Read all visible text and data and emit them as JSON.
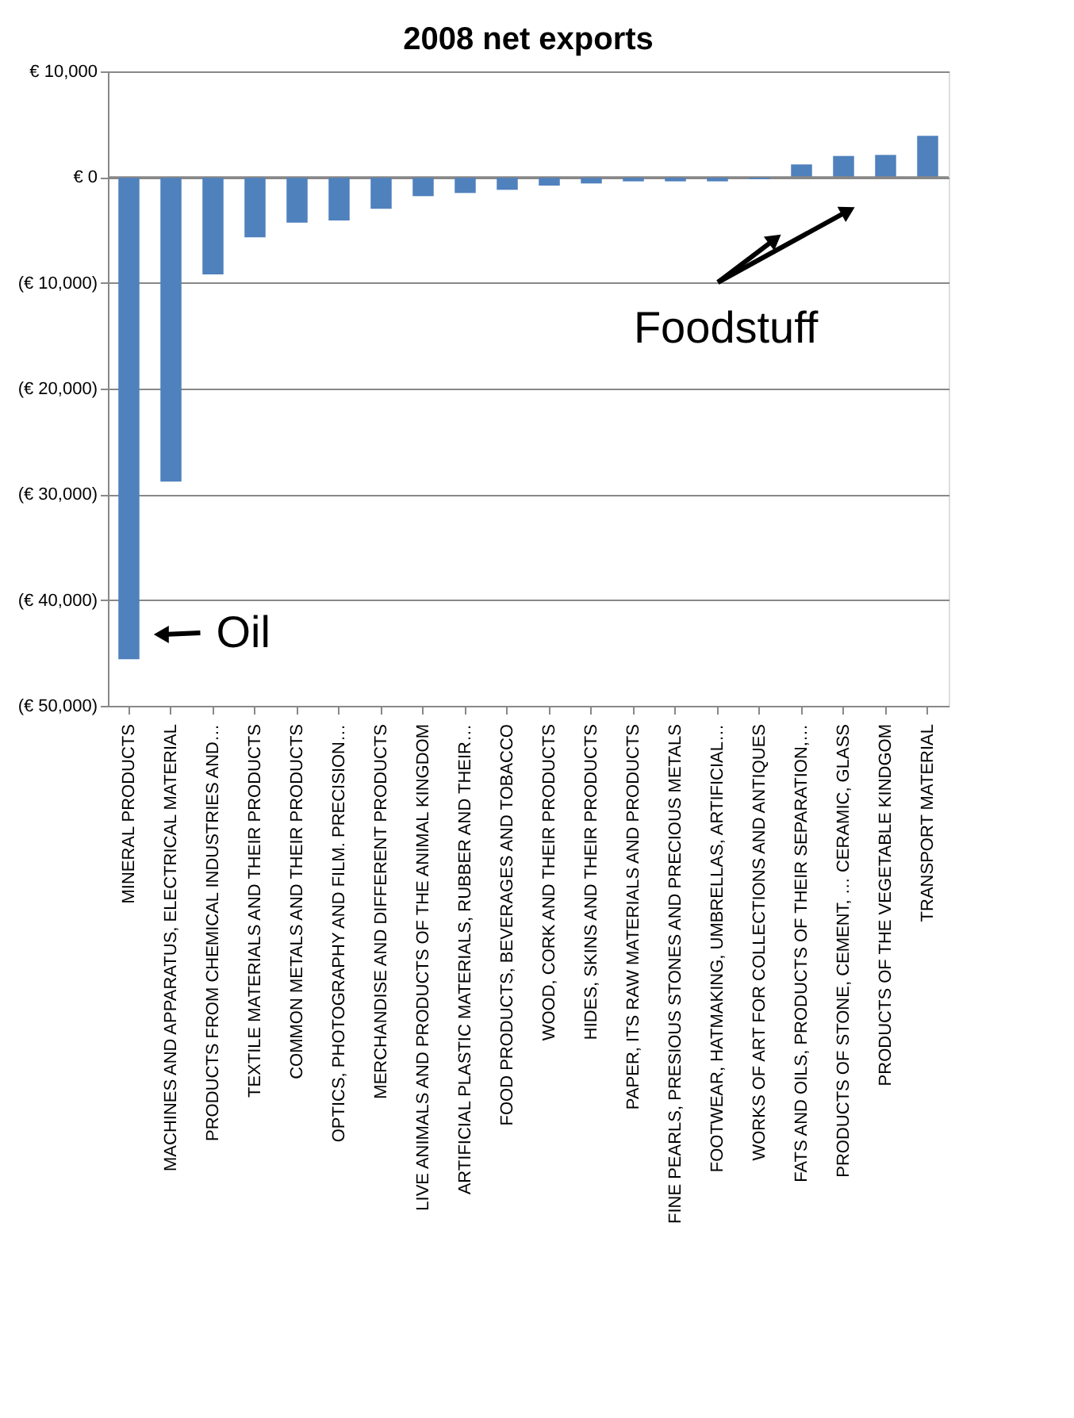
{
  "chart_data": {
    "type": "bar",
    "title": "2008 net exports",
    "categories": [
      "MINERAL PRODUCTS",
      "MACHINES AND APPARATUS, ELECTRICAL MATERIAL",
      "PRODUCTS FROM CHEMICAL INDUSTRIES AND…",
      "TEXTILE MATERIALS AND THEIR PRODUCTS",
      "COMMON METALS AND THEIR PRODUCTS",
      "OPTICS, PHOTOGRAPHY AND FILM. PRECISION…",
      "MERCHANDISE AND DIFFERENT PRODUCTS",
      "LIVE ANIMALS AND PRODUCTS OF THE ANIMAL KINGDOM",
      "ARTIFICIAL PLASTIC MATERIALS, RUBBER AND THEIR…",
      "FOOD PRODUCTS, BEVERAGES AND TOBACCO",
      "WOOD, CORK AND THEIR PRODUCTS",
      "HIDES, SKINS AND THEIR PRODUCTS",
      "PAPER, ITS RAW MATERIALS AND PRODUCTS",
      "FINE PEARLS, PRESIOUS STONES AND PRECIOUS METALS",
      "FOOTWEAR, HATMAKING, UMBRELLAS, ARTIFICIAL…",
      "WORKS OF ART FOR COLLECTIONS AND ANTIQUES",
      "FATS AND OILS, PRODUCTS OF THEIR SEPARATION,…",
      "PRODUCTS OF STONE, CEMENT, … CERAMIC, GLASS",
      "PRODUCTS OF THE VEGETABLE KINDGOM",
      "TRANSPORT MATERIAL"
    ],
    "values": [
      -45600,
      -28800,
      -9200,
      -5700,
      -4300,
      -4100,
      -3000,
      -1800,
      -1500,
      -1200,
      -800,
      -600,
      -400,
      -400,
      -400,
      -200,
      1200,
      2000,
      2100,
      3900
    ],
    "color": "#4f81bd",
    "ylim": [
      -50000,
      10000
    ],
    "yticks": [
      {
        "value": -50000,
        "label": "(€ 50,000)"
      },
      {
        "value": -40000,
        "label": "(€ 40,000)"
      },
      {
        "value": -30000,
        "label": "(€ 30,000)"
      },
      {
        "value": -20000,
        "label": "(€ 20,000)"
      },
      {
        "value": -10000,
        "label": "(€ 10,000)"
      },
      {
        "value": 0,
        "label": "€ 0"
      },
      {
        "value": 10000,
        "label": "€ 10,000"
      }
    ],
    "grid": "y",
    "annotations": [
      "Oil",
      "Foodstuff"
    ]
  }
}
